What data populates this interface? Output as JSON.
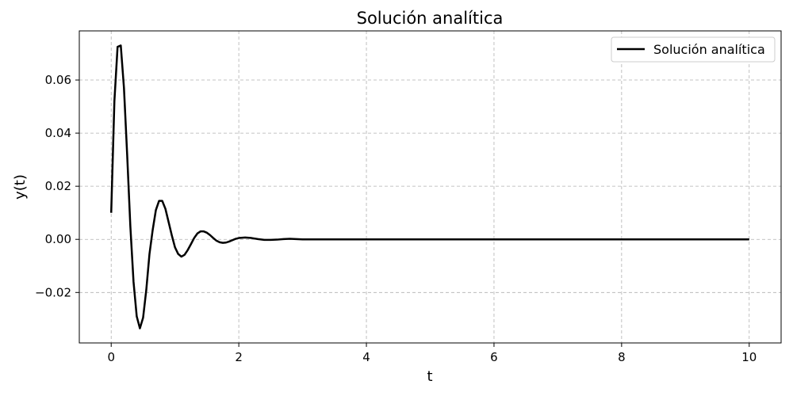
{
  "chart_data": {
    "type": "line",
    "title": "Solución analítica",
    "xlabel": "t",
    "ylabel": "y(t)",
    "xlim": [
      -0.5,
      10.5
    ],
    "ylim": [
      -0.039,
      0.0785
    ],
    "xticks": [
      0,
      2,
      4,
      6,
      8,
      10
    ],
    "xtick_labels": [
      "0",
      "2",
      "4",
      "6",
      "8",
      "10"
    ],
    "yticks": [
      -0.02,
      0.0,
      0.02,
      0.04,
      0.06
    ],
    "ytick_labels": [
      "−0.02",
      "0.00",
      "0.02",
      "0.04",
      "0.06"
    ],
    "grid": true,
    "legend_position": "top-right",
    "series": [
      {
        "name": "Solución analítica",
        "color": "#000000",
        "x": [
          0.0,
          0.05,
          0.1,
          0.15,
          0.2,
          0.25,
          0.3,
          0.35,
          0.4,
          0.45,
          0.5,
          0.55,
          0.6,
          0.65,
          0.7,
          0.75,
          0.8,
          0.85,
          0.9,
          0.95,
          1.0,
          1.05,
          1.1,
          1.15,
          1.2,
          1.25,
          1.3,
          1.35,
          1.4,
          1.45,
          1.5,
          1.55,
          1.6,
          1.65,
          1.7,
          1.75,
          1.8,
          1.85,
          1.9,
          1.95,
          2.0,
          2.1,
          2.2,
          2.3,
          2.4,
          2.5,
          2.6,
          2.7,
          2.8,
          2.9,
          3.0,
          3.2,
          3.5,
          4.0,
          5.0,
          6.0,
          7.0,
          8.0,
          9.0,
          10.0
        ],
        "y": [
          0.01,
          0.052,
          0.0725,
          0.073,
          0.057,
          0.032,
          0.005,
          -0.016,
          -0.029,
          -0.0335,
          -0.0295,
          -0.019,
          -0.0055,
          0.0035,
          0.011,
          0.0145,
          0.0145,
          0.0115,
          0.0065,
          0.0015,
          -0.003,
          -0.0055,
          -0.0065,
          -0.0058,
          -0.004,
          -0.0018,
          0.0005,
          0.0022,
          0.003,
          0.003,
          0.0025,
          0.0016,
          0.0005,
          -0.0005,
          -0.0011,
          -0.0013,
          -0.0012,
          -0.0008,
          -0.0003,
          0.0002,
          0.0005,
          0.0007,
          0.0005,
          0.0001,
          -0.0002,
          -0.0002,
          -0.0001,
          0.0001,
          0.0002,
          0.0001,
          0.0,
          0.0,
          0.0,
          0.0,
          0.0,
          0.0,
          0.0,
          0.0,
          0.0,
          0.0
        ]
      }
    ]
  }
}
